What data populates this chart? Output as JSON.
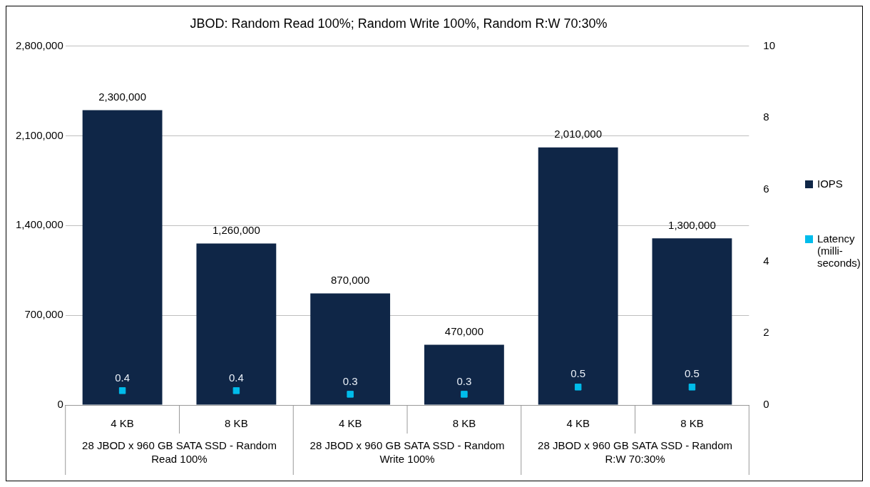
{
  "chart_data": {
    "type": "bar",
    "title": "JBOD: Random Read 100%; Random Write 100%, Random R:W 70:30%",
    "categories": [
      "4 KB",
      "8 KB",
      "4 KB",
      "8 KB",
      "4 KB",
      "8 KB"
    ],
    "annotations": [
      "28 JBOD x 960 GB SATA SSD - Random Read 100%",
      "28 JBOD x 960 GB SATA SSD - Random Write 100%",
      "28 JBOD x 960 GB SATA SSD - Random R:W 70:30%"
    ],
    "series": [
      {
        "name": "IOPS",
        "color": "#0f2647",
        "values": [
          2300000,
          1260000,
          870000,
          470000,
          2010000,
          1300000
        ],
        "value_labels": [
          "2,300,000",
          "1,260,000",
          "870,000",
          "470,000",
          "2,010,000",
          "1,300,000"
        ]
      },
      {
        "name": "Latency (milli-seconds)",
        "type": "scatter",
        "axis": "y2",
        "marker": "square",
        "color": "#00bceb",
        "values": [
          0.4,
          0.4,
          0.3,
          0.3,
          0.5,
          0.5
        ],
        "value_labels": [
          "0.4",
          "0.4",
          "0.3",
          "0.3",
          "0.5",
          "0.5"
        ]
      }
    ],
    "ylim": [
      0,
      2800000
    ],
    "yticks": [
      {
        "value": 0,
        "label": "0"
      },
      {
        "value": 700000,
        "label": "700,000"
      },
      {
        "value": 1400000,
        "label": "1,400,000"
      },
      {
        "value": 2100000,
        "label": "2,100,000"
      },
      {
        "value": 2800000,
        "label": "2,800,000"
      }
    ],
    "y2lim": [
      0,
      10
    ],
    "y2ticks": [
      0,
      2,
      4,
      6,
      8,
      10
    ],
    "grid": "y",
    "legend": "right"
  }
}
